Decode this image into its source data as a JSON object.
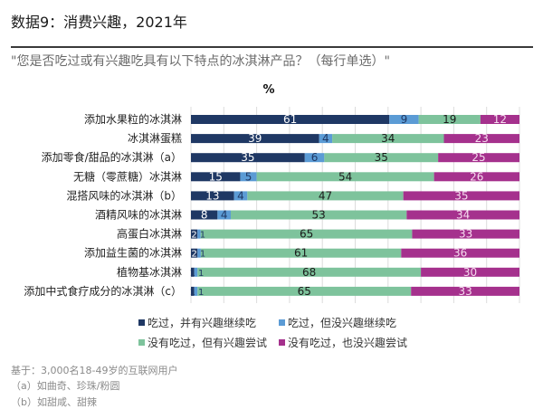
{
  "header": {
    "title": "数据9：消费兴趣，2021年",
    "question": "\"您是否吃过或有兴趣吃具有以下特点的冰淇淋产品？（每行单选）\""
  },
  "chart_data": {
    "type": "bar",
    "orientation": "horizontal",
    "stacked": true,
    "unit_label": "%",
    "title": "",
    "xlabel": "",
    "ylabel": "",
    "xlim": [
      0,
      100
    ],
    "grid": true,
    "legend_position": "bottom",
    "categories": [
      "添加水果粒的冰淇淋",
      "冰淇淋蛋糕",
      "添加零食/甜品的冰淇淋（a）",
      "无糖（零蔗糖）冰淇淋",
      "混搭风味的冰淇淋（b）",
      "酒精风味的冰淇淋",
      "高蛋白冰淇淋",
      "添加益生菌的冰淇淋",
      "植物基冰淇淋",
      "添加中式食疗成分的冰淇淋（c）"
    ],
    "series": [
      {
        "name": "吃过，并有兴趣继续吃",
        "color": "#1f3864",
        "label_color": "#ffffff",
        "values": [
          61,
          39,
          35,
          15,
          13,
          8,
          2,
          2,
          1,
          1
        ]
      },
      {
        "name": "吃过，但没兴趣继续吃",
        "color": "#5b9bd5",
        "label_color": "#1f3864",
        "values": [
          9,
          4,
          6,
          5,
          4,
          4,
          1,
          1,
          1,
          1
        ]
      },
      {
        "name": "没有吃过，但有兴趣尝试",
        "color": "#7ec39c",
        "label_color": "#1a1a1a",
        "values": [
          19,
          34,
          35,
          54,
          47,
          53,
          65,
          61,
          68,
          65
        ]
      },
      {
        "name": "没有吃过，也没兴趣尝试",
        "color": "#a5318d",
        "label_color": "#f6dcef",
        "values": [
          12,
          23,
          25,
          26,
          35,
          34,
          33,
          36,
          30,
          33
        ]
      }
    ]
  },
  "footer": {
    "base": "基于：3,000名18-49岁的互联网用户",
    "notes": [
      "（a）如曲奇、珍珠/粉圆",
      "（b）如甜咸、甜辣"
    ]
  }
}
